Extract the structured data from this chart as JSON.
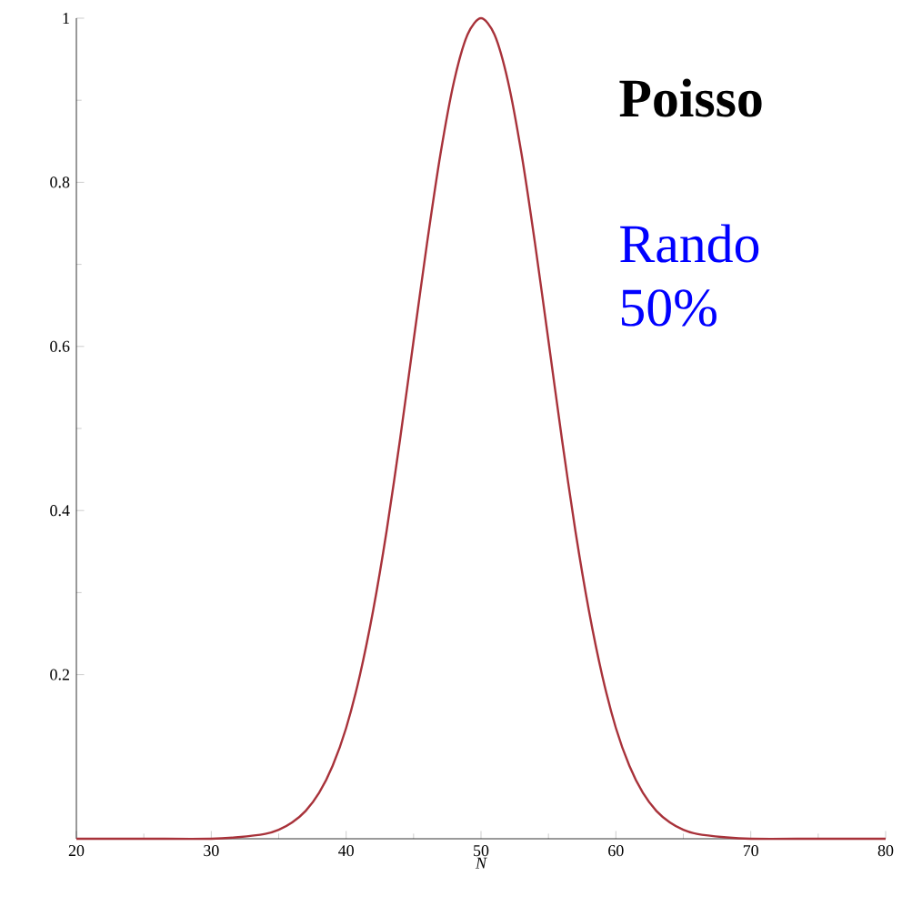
{
  "chart_data": {
    "type": "line",
    "xlabel": "N",
    "annotations": [
      "Poisso",
      "Rando",
      "50%"
    ],
    "xlim": [
      20,
      80
    ],
    "ylim": [
      0,
      1
    ],
    "xticks": [
      20,
      30,
      40,
      50,
      60,
      70,
      80
    ],
    "yticks": [
      0.2,
      0.4,
      0.6,
      0.8,
      1
    ],
    "marker": "none",
    "line_style": "solid",
    "series": [
      {
        "color": "#a8323a",
        "x": [
          20,
          25,
          30,
          32,
          34,
          35,
          36,
          37,
          38,
          39,
          40,
          41,
          42,
          43,
          44,
          45,
          46,
          47,
          48,
          49,
          50,
          51,
          52,
          53,
          54,
          55,
          56,
          57,
          58,
          59,
          60,
          61,
          62,
          63,
          64,
          65,
          66,
          68,
          70,
          75,
          80
        ],
        "values": [
          0,
          0,
          0,
          0.002,
          0.006,
          0.011,
          0.02,
          0.034,
          0.056,
          0.089,
          0.135,
          0.198,
          0.278,
          0.375,
          0.487,
          0.607,
          0.726,
          0.835,
          0.923,
          0.98,
          1,
          0.98,
          0.923,
          0.835,
          0.726,
          0.607,
          0.487,
          0.375,
          0.278,
          0.198,
          0.135,
          0.089,
          0.056,
          0.034,
          0.02,
          0.011,
          0.006,
          0.002,
          0,
          0,
          0
        ]
      }
    ]
  }
}
